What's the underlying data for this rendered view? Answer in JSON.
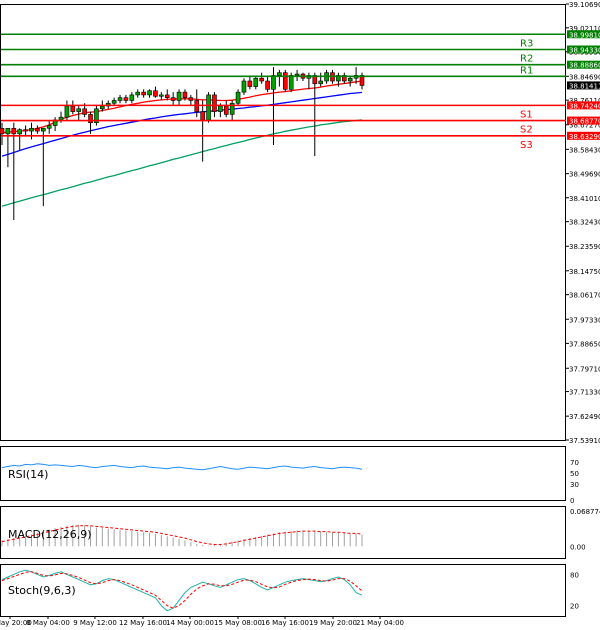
{
  "chart_data": [
    {
      "type": "candlestick",
      "panel": "price",
      "ylim": [
        37.5391,
        39.1069
      ],
      "y_ticks": [
        39.1069,
        39.0211,
        38.9353,
        38.8469,
        38.7611,
        38.6727,
        38.5843,
        38.4969,
        38.4101,
        38.3243,
        38.2359,
        38.1475,
        38.0617,
        37.9733,
        37.8865,
        37.7971,
        37.7133,
        37.6249,
        37.5391
      ],
      "x_ticks": [
        "7 May 20:00",
        "8 May 04:00",
        "9 May 12:00",
        "12 May 16:00",
        "14 May 00:00",
        "15 May 08:00",
        "16 May 16:00",
        "19 May 20:00",
        "21 May 04:00"
      ],
      "current_price": "38.81411",
      "current_price_label": "38.81411",
      "colors": {
        "bull": "#00a000",
        "bear": "#ff0000",
        "sma_fast": "#ff0000",
        "sma_mid": "#0000ff",
        "sma_slow": "#00a060",
        "resistance": "#008000",
        "support": "#ff0000"
      },
      "levels": [
        {
          "name": "",
          "value": 38.9981,
          "label": "38.99810",
          "kind": "resistance"
        },
        {
          "name": "R3",
          "value": 38.9433,
          "label": "38.94330",
          "kind": "resistance"
        },
        {
          "name": "R2",
          "value": 38.8886,
          "label": "38.88860",
          "kind": "resistance"
        },
        {
          "name": "R1",
          "value": 38.8469,
          "label": "",
          "kind": "resistance"
        },
        {
          "name": "S1",
          "value": 38.7424,
          "label": "38.74240",
          "kind": "support"
        },
        {
          "name": "S2",
          "value": 38.6877,
          "label": "38.68770",
          "kind": "support"
        },
        {
          "name": "S3",
          "value": 38.6329,
          "label": "38.63290",
          "kind": "support"
        }
      ],
      "candles": [
        {
          "o": 38.66,
          "h": 38.68,
          "l": 38.6,
          "c": 38.64
        },
        {
          "o": 38.64,
          "h": 38.65,
          "l": 38.52,
          "c": 38.66
        },
        {
          "o": 38.66,
          "h": 38.68,
          "l": 38.33,
          "c": 38.64
        },
        {
          "o": 38.64,
          "h": 38.66,
          "l": 38.58,
          "c": 38.655
        },
        {
          "o": 38.655,
          "h": 38.67,
          "l": 38.63,
          "c": 38.65
        },
        {
          "o": 38.65,
          "h": 38.68,
          "l": 38.62,
          "c": 38.66
        },
        {
          "o": 38.66,
          "h": 38.67,
          "l": 38.64,
          "c": 38.65
        },
        {
          "o": 38.65,
          "h": 38.66,
          "l": 38.38,
          "c": 38.66
        },
        {
          "o": 38.66,
          "h": 38.69,
          "l": 38.64,
          "c": 38.67
        },
        {
          "o": 38.67,
          "h": 38.7,
          "l": 38.65,
          "c": 38.69
        },
        {
          "o": 38.69,
          "h": 38.72,
          "l": 38.68,
          "c": 38.7
        },
        {
          "o": 38.7,
          "h": 38.76,
          "l": 38.69,
          "c": 38.74
        },
        {
          "o": 38.74,
          "h": 38.76,
          "l": 38.71,
          "c": 38.72
        },
        {
          "o": 38.72,
          "h": 38.74,
          "l": 38.69,
          "c": 38.73
        },
        {
          "o": 38.73,
          "h": 38.75,
          "l": 38.7,
          "c": 38.71
        },
        {
          "o": 38.71,
          "h": 38.72,
          "l": 38.64,
          "c": 38.68
        },
        {
          "o": 38.68,
          "h": 38.74,
          "l": 38.67,
          "c": 38.73
        },
        {
          "o": 38.73,
          "h": 38.76,
          "l": 38.72,
          "c": 38.74
        },
        {
          "o": 38.74,
          "h": 38.76,
          "l": 38.73,
          "c": 38.75
        },
        {
          "o": 38.75,
          "h": 38.77,
          "l": 38.74,
          "c": 38.76
        },
        {
          "o": 38.76,
          "h": 38.78,
          "l": 38.75,
          "c": 38.77
        },
        {
          "o": 38.77,
          "h": 38.78,
          "l": 38.75,
          "c": 38.76
        },
        {
          "o": 38.76,
          "h": 38.79,
          "l": 38.75,
          "c": 38.78
        },
        {
          "o": 38.78,
          "h": 38.8,
          "l": 38.77,
          "c": 38.79
        },
        {
          "o": 38.79,
          "h": 38.8,
          "l": 38.77,
          "c": 38.78
        },
        {
          "o": 38.78,
          "h": 38.8,
          "l": 38.77,
          "c": 38.795
        },
        {
          "o": 38.795,
          "h": 38.81,
          "l": 38.77,
          "c": 38.775
        },
        {
          "o": 38.775,
          "h": 38.79,
          "l": 38.76,
          "c": 38.78
        },
        {
          "o": 38.78,
          "h": 38.8,
          "l": 38.76,
          "c": 38.77
        },
        {
          "o": 38.77,
          "h": 38.79,
          "l": 38.74,
          "c": 38.76
        },
        {
          "o": 38.76,
          "h": 38.8,
          "l": 38.74,
          "c": 38.79
        },
        {
          "o": 38.79,
          "h": 38.8,
          "l": 38.76,
          "c": 38.77
        },
        {
          "o": 38.77,
          "h": 38.78,
          "l": 38.74,
          "c": 38.76
        },
        {
          "o": 38.76,
          "h": 38.8,
          "l": 38.7,
          "c": 38.72
        },
        {
          "o": 38.72,
          "h": 38.76,
          "l": 38.54,
          "c": 38.69
        },
        {
          "o": 38.69,
          "h": 38.79,
          "l": 38.68,
          "c": 38.78
        },
        {
          "o": 38.78,
          "h": 38.79,
          "l": 38.7,
          "c": 38.72
        },
        {
          "o": 38.72,
          "h": 38.75,
          "l": 38.7,
          "c": 38.74
        },
        {
          "o": 38.74,
          "h": 38.76,
          "l": 38.7,
          "c": 38.71
        },
        {
          "o": 38.71,
          "h": 38.76,
          "l": 38.69,
          "c": 38.75
        },
        {
          "o": 38.75,
          "h": 38.8,
          "l": 38.74,
          "c": 38.79
        },
        {
          "o": 38.79,
          "h": 38.84,
          "l": 38.78,
          "c": 38.83
        },
        {
          "o": 38.83,
          "h": 38.85,
          "l": 38.8,
          "c": 38.81
        },
        {
          "o": 38.81,
          "h": 38.85,
          "l": 38.8,
          "c": 38.84
        },
        {
          "o": 38.84,
          "h": 38.86,
          "l": 38.82,
          "c": 38.83
        },
        {
          "o": 38.83,
          "h": 38.85,
          "l": 38.79,
          "c": 38.8
        },
        {
          "o": 38.8,
          "h": 38.88,
          "l": 38.6,
          "c": 38.85
        },
        {
          "o": 38.85,
          "h": 38.87,
          "l": 38.81,
          "c": 38.86
        },
        {
          "o": 38.86,
          "h": 38.87,
          "l": 38.79,
          "c": 38.8
        },
        {
          "o": 38.8,
          "h": 38.86,
          "l": 38.79,
          "c": 38.85
        },
        {
          "o": 38.85,
          "h": 38.87,
          "l": 38.83,
          "c": 38.855
        },
        {
          "o": 38.855,
          "h": 38.86,
          "l": 38.83,
          "c": 38.84
        },
        {
          "o": 38.84,
          "h": 38.86,
          "l": 38.8,
          "c": 38.85
        },
        {
          "o": 38.85,
          "h": 38.86,
          "l": 38.56,
          "c": 38.82
        },
        {
          "o": 38.82,
          "h": 38.86,
          "l": 38.81,
          "c": 38.83
        },
        {
          "o": 38.83,
          "h": 38.87,
          "l": 38.82,
          "c": 38.86
        },
        {
          "o": 38.86,
          "h": 38.87,
          "l": 38.82,
          "c": 38.83
        },
        {
          "o": 38.83,
          "h": 38.86,
          "l": 38.81,
          "c": 38.85
        },
        {
          "o": 38.85,
          "h": 38.86,
          "l": 38.82,
          "c": 38.83
        },
        {
          "o": 38.83,
          "h": 38.85,
          "l": 38.81,
          "c": 38.84
        },
        {
          "o": 38.84,
          "h": 38.88,
          "l": 38.82,
          "c": 38.85
        },
        {
          "o": 38.85,
          "h": 38.86,
          "l": 38.8,
          "c": 38.814
        }
      ],
      "sma_fast": [
        38.645,
        38.646,
        38.648,
        38.65,
        38.652,
        38.655,
        38.66,
        38.665,
        38.672,
        38.682,
        38.692,
        38.7,
        38.706,
        38.711,
        38.716,
        38.718,
        38.72,
        38.724,
        38.728,
        38.732,
        38.737,
        38.742,
        38.746,
        38.75,
        38.754,
        38.757,
        38.76,
        38.762,
        38.764,
        38.765,
        38.766,
        38.766,
        38.766,
        38.764,
        38.762,
        38.762,
        38.761,
        38.76,
        38.76,
        38.761,
        38.764,
        38.768,
        38.772,
        38.777,
        38.781,
        38.784,
        38.787,
        38.79,
        38.792,
        38.795,
        38.798,
        38.801,
        38.803,
        38.805,
        38.808,
        38.812,
        38.815,
        38.818,
        38.821,
        38.824,
        38.827,
        38.83
      ],
      "sma_mid": [
        38.56,
        38.566,
        38.573,
        38.58,
        38.587,
        38.593,
        38.599,
        38.605,
        38.611,
        38.617,
        38.623,
        38.629,
        38.635,
        38.641,
        38.646,
        38.651,
        38.656,
        38.661,
        38.666,
        38.67,
        38.674,
        38.678,
        38.682,
        38.686,
        38.69,
        38.694,
        38.697,
        38.701,
        38.704,
        38.707,
        38.71,
        38.712,
        38.715,
        38.717,
        38.719,
        38.721,
        38.723,
        38.725,
        38.727,
        38.729,
        38.731,
        38.733,
        38.736,
        38.738,
        38.741,
        38.743,
        38.746,
        38.749,
        38.752,
        38.755,
        38.758,
        38.761,
        38.764,
        38.767,
        38.77,
        38.773,
        38.776,
        38.779,
        38.782,
        38.785,
        38.787,
        38.789
      ],
      "sma_slow": [
        38.38,
        38.386,
        38.392,
        38.398,
        38.404,
        38.41,
        38.416,
        38.421,
        38.427,
        38.433,
        38.439,
        38.444,
        38.45,
        38.456,
        38.462,
        38.467,
        38.473,
        38.479,
        38.485,
        38.49,
        38.496,
        38.502,
        38.508,
        38.513,
        38.519,
        38.525,
        38.53,
        38.536,
        38.542,
        38.548,
        38.553,
        38.559,
        38.565,
        38.57,
        38.576,
        38.582,
        38.587,
        38.593,
        38.598,
        38.604,
        38.609,
        38.614,
        38.62,
        38.625,
        38.63,
        38.635,
        38.64,
        38.644,
        38.649,
        38.653,
        38.657,
        38.661,
        38.665,
        38.668,
        38.672,
        38.675,
        38.678,
        38.681,
        38.684,
        38.686,
        38.688,
        38.69
      ]
    },
    {
      "type": "line",
      "panel": "rsi",
      "title": "RSI(14)",
      "ylim": [
        0,
        100
      ],
      "y_ticks": [
        70,
        50,
        30,
        0
      ],
      "values": [
        60,
        62,
        64,
        63,
        66,
        65,
        67,
        66,
        64,
        65,
        64,
        63,
        62,
        64,
        63,
        61,
        60,
        62,
        63,
        64,
        62,
        61,
        60,
        62,
        63,
        61,
        60,
        59,
        58,
        60,
        61,
        59,
        58,
        57,
        56,
        58,
        60,
        62,
        60,
        58,
        57,
        59,
        61,
        60,
        59,
        58,
        60,
        62,
        63,
        61,
        60,
        59,
        61,
        62,
        60,
        59,
        58,
        60,
        61,
        60,
        59,
        57
      ]
    },
    {
      "type": "bar+line",
      "panel": "macd",
      "title": "MACD(12,26,9)",
      "ylim": [
        -0.02,
        0.068774
      ],
      "y_ticks": [
        "0.068774",
        "0.00"
      ],
      "bars": [
        0.01,
        0.012,
        0.014,
        0.016,
        0.018,
        0.02,
        0.023,
        0.026,
        0.029,
        0.031,
        0.033,
        0.035,
        0.036,
        0.037,
        0.036,
        0.034,
        0.032,
        0.031,
        0.03,
        0.029,
        0.028,
        0.027,
        0.026,
        0.025,
        0.024,
        0.023,
        0.021,
        0.019,
        0.017,
        0.015,
        0.013,
        0.01,
        0.007,
        0.004,
        0.002,
        0.001,
        0.002,
        0.004,
        0.006,
        0.008,
        0.01,
        0.012,
        0.014,
        0.016,
        0.018,
        0.02,
        0.022,
        0.024,
        0.025,
        0.026,
        0.027,
        0.027,
        0.026,
        0.025,
        0.025,
        0.024,
        0.024,
        0.023,
        0.022,
        0.022,
        0.021,
        0.02
      ],
      "signal": [
        0.008,
        0.01,
        0.012,
        0.014,
        0.016,
        0.018,
        0.02,
        0.023,
        0.025,
        0.028,
        0.03,
        0.032,
        0.034,
        0.035,
        0.035,
        0.035,
        0.034,
        0.033,
        0.032,
        0.031,
        0.03,
        0.029,
        0.028,
        0.027,
        0.026,
        0.025,
        0.024,
        0.022,
        0.02,
        0.018,
        0.016,
        0.014,
        0.011,
        0.008,
        0.006,
        0.004,
        0.003,
        0.003,
        0.004,
        0.006,
        0.008,
        0.01,
        0.012,
        0.014,
        0.016,
        0.018,
        0.02,
        0.022,
        0.023,
        0.024,
        0.025,
        0.026,
        0.026,
        0.026,
        0.025,
        0.025,
        0.024,
        0.024,
        0.023,
        0.022,
        0.022,
        0.021
      ]
    },
    {
      "type": "line",
      "panel": "stoch",
      "title": "Stoch(9,6,3)",
      "ylim": [
        0,
        100
      ],
      "y_ticks": [
        80,
        20
      ],
      "k": [
        70,
        75,
        80,
        85,
        88,
        85,
        80,
        75,
        78,
        82,
        85,
        80,
        75,
        70,
        65,
        60,
        62,
        68,
        72,
        70,
        65,
        60,
        55,
        50,
        45,
        40,
        35,
        20,
        10,
        15,
        30,
        45,
        55,
        60,
        65,
        62,
        58,
        55,
        60,
        65,
        70,
        72,
        68,
        62,
        55,
        50,
        55,
        60,
        65,
        68,
        70,
        72,
        70,
        68,
        66,
        68,
        72,
        75,
        70,
        60,
        45,
        40
      ],
      "d": [
        68,
        72,
        76,
        80,
        84,
        85,
        82,
        78,
        77,
        79,
        82,
        81,
        78,
        74,
        69,
        64,
        62,
        64,
        68,
        70,
        68,
        64,
        60,
        55,
        50,
        45,
        40,
        30,
        20,
        15,
        20,
        30,
        42,
        52,
        58,
        62,
        61,
        58,
        58,
        61,
        65,
        69,
        69,
        66,
        61,
        56,
        54,
        56,
        61,
        65,
        68,
        70,
        71,
        70,
        68,
        67,
        69,
        72,
        72,
        67,
        58,
        48
      ]
    }
  ]
}
